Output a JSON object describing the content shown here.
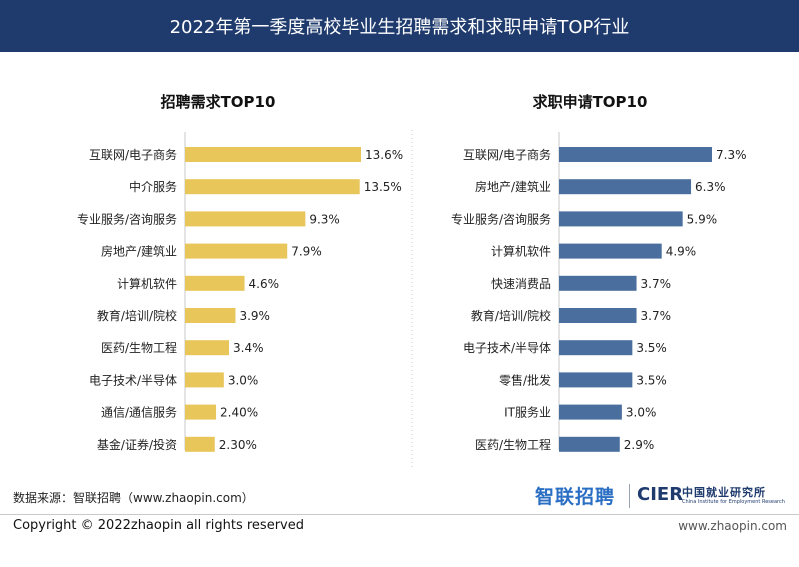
{
  "header": {
    "title": "2022年第一季度高校毕业生招聘需求和求职申请TOP行业"
  },
  "chart_data": [
    {
      "type": "bar",
      "orientation": "horizontal",
      "title": "招聘需求TOP10",
      "categories": [
        "互联网/电子商务",
        "中介服务",
        "专业服务/咨询服务",
        "房地产/建筑业",
        "计算机软件",
        "教育/培训/院校",
        "医药/生物工程",
        "电子技术/半导体",
        "通信/通信服务",
        "基金/证券/投资"
      ],
      "values": [
        13.6,
        13.5,
        9.3,
        7.9,
        4.6,
        3.9,
        3.4,
        3.0,
        2.4,
        2.3
      ],
      "value_labels": [
        "13.6%",
        "13.5%",
        "9.3%",
        "7.9%",
        "4.6%",
        "3.9%",
        "3.4%",
        "3.0%",
        "2.40%",
        "2.30%"
      ],
      "unit": "%",
      "color": "#e8c659",
      "grid": false
    },
    {
      "type": "bar",
      "orientation": "horizontal",
      "title": "求职申请TOP10",
      "categories": [
        "互联网/电子商务",
        "房地产/建筑业",
        "专业服务/咨询服务",
        "计算机软件",
        "快速消费品",
        "教育/培训/院校",
        "电子技术/半导体",
        "零售/批发",
        "IT服务业",
        "医药/生物工程"
      ],
      "values": [
        7.3,
        6.3,
        5.9,
        4.9,
        3.7,
        3.7,
        3.5,
        3.5,
        3.0,
        2.9
      ],
      "value_labels": [
        "7.3%",
        "6.3%",
        "5.9%",
        "4.9%",
        "3.7%",
        "3.7%",
        "3.5%",
        "3.5%",
        "3.0%",
        "2.9%"
      ],
      "unit": "%",
      "color": "#4a6f9f",
      "grid": false
    }
  ],
  "footer": {
    "source": "数据来源：智联招聘（www.zhaopin.com）",
    "brand_zhaopin": "智联招聘",
    "brand_cier": "CIER",
    "brand_cier_cn": "中国就业研究所",
    "brand_cier_en": "China Institute for Employment Research",
    "copyright": "Copyright © 2022zhaopin all rights reserved",
    "url": "www.zhaopin.com"
  }
}
